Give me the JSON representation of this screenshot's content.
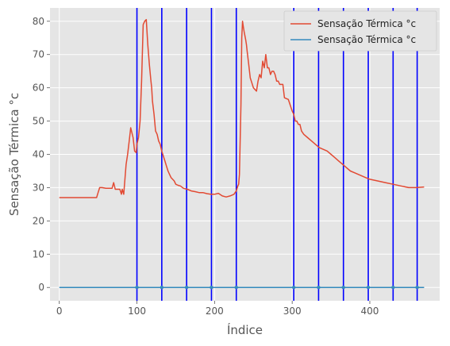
{
  "chart_data": {
    "type": "line",
    "xlabel": "Índice",
    "ylabel": "Sensação Térmica °c",
    "xlim": [
      -12,
      490
    ],
    "ylim": [
      -4,
      84
    ],
    "xticks": [
      0,
      100,
      200,
      300,
      400
    ],
    "yticks": [
      0,
      10,
      20,
      30,
      40,
      50,
      60,
      70,
      80
    ],
    "grid": true,
    "legend_position": "top-right",
    "series": [
      {
        "name": "Sensação Térmica °c",
        "color": "#e24a33",
        "x": [
          0,
          10,
          20,
          30,
          40,
          48,
          50,
          52,
          55,
          60,
          65,
          68,
          70,
          72,
          75,
          78,
          80,
          81,
          83,
          84,
          86,
          88,
          90,
          92,
          95,
          97,
          99,
          100,
          102,
          104,
          106,
          108,
          110,
          112,
          114,
          116,
          118,
          119,
          120,
          122,
          124,
          126,
          128,
          130,
          132,
          134,
          136,
          138,
          140,
          142,
          144,
          146,
          148,
          150,
          153,
          156,
          160,
          165,
          170,
          175,
          180,
          185,
          190,
          195,
          200,
          205,
          210,
          215,
          220,
          225,
          228,
          230,
          231,
          232,
          234,
          235,
          236,
          237,
          238,
          240,
          241,
          242,
          244,
          246,
          248,
          250,
          252,
          254,
          256,
          258,
          260,
          262,
          264,
          266,
          268,
          270,
          272,
          274,
          276,
          278,
          280,
          282,
          284,
          286,
          288,
          290,
          295,
          300,
          302,
          304,
          306,
          308,
          310,
          312,
          315,
          320,
          325,
          330,
          335,
          340,
          345,
          350,
          355,
          360,
          365,
          370,
          375,
          380,
          385,
          390,
          395,
          400,
          410,
          420,
          430,
          440,
          450,
          460,
          470
        ],
        "y": [
          27,
          27,
          27,
          27,
          27,
          27,
          28.5,
          30,
          30,
          29.8,
          29.8,
          29.8,
          31.5,
          29.5,
          29.5,
          29.5,
          28,
          29.5,
          28,
          31,
          37,
          40,
          44,
          48,
          45,
          41,
          40.5,
          43,
          45,
          50,
          62,
          79,
          80,
          80.5,
          73,
          67,
          62,
          60,
          56,
          52,
          47,
          46,
          44,
          43,
          41,
          39.5,
          38,
          36.5,
          35,
          34,
          33,
          32.5,
          32,
          31,
          30.7,
          30.5,
          29.8,
          29.5,
          29,
          28.8,
          28.5,
          28.5,
          28.2,
          28,
          28,
          28.3,
          27.5,
          27.2,
          27.5,
          28,
          29,
          30.5,
          31,
          34,
          55,
          75,
          80,
          78.5,
          77,
          74.5,
          73,
          71,
          67,
          63,
          61.5,
          60,
          59.5,
          59,
          62,
          64,
          63,
          68,
          66,
          70,
          66,
          66,
          64,
          65,
          65,
          64,
          62,
          62,
          61,
          61,
          61,
          57,
          56.5,
          53,
          52,
          50,
          50,
          49,
          49,
          47,
          46,
          45,
          44,
          43,
          42,
          41.5,
          41,
          40,
          39,
          38,
          37,
          36,
          35,
          34.5,
          34,
          33.5,
          33,
          32.5,
          32,
          31.5,
          31,
          30.5,
          30,
          30,
          30.2
        ]
      },
      {
        "name": "Sensação Térmica °c",
        "color": "#348abd",
        "x": [
          0,
          470
        ],
        "y": [
          0,
          0
        ]
      }
    ],
    "vertical_lines": {
      "color": "#0000ff",
      "x": [
        100,
        132,
        164,
        196,
        228,
        302,
        334,
        366,
        398,
        430,
        461
      ]
    },
    "markers": {
      "color": "#348abd",
      "x": [
        100,
        132,
        164,
        196,
        228,
        302,
        334,
        366,
        398,
        430,
        461
      ],
      "y": [
        0,
        0,
        0,
        0,
        0,
        0,
        0,
        0,
        0,
        0,
        0
      ]
    }
  }
}
